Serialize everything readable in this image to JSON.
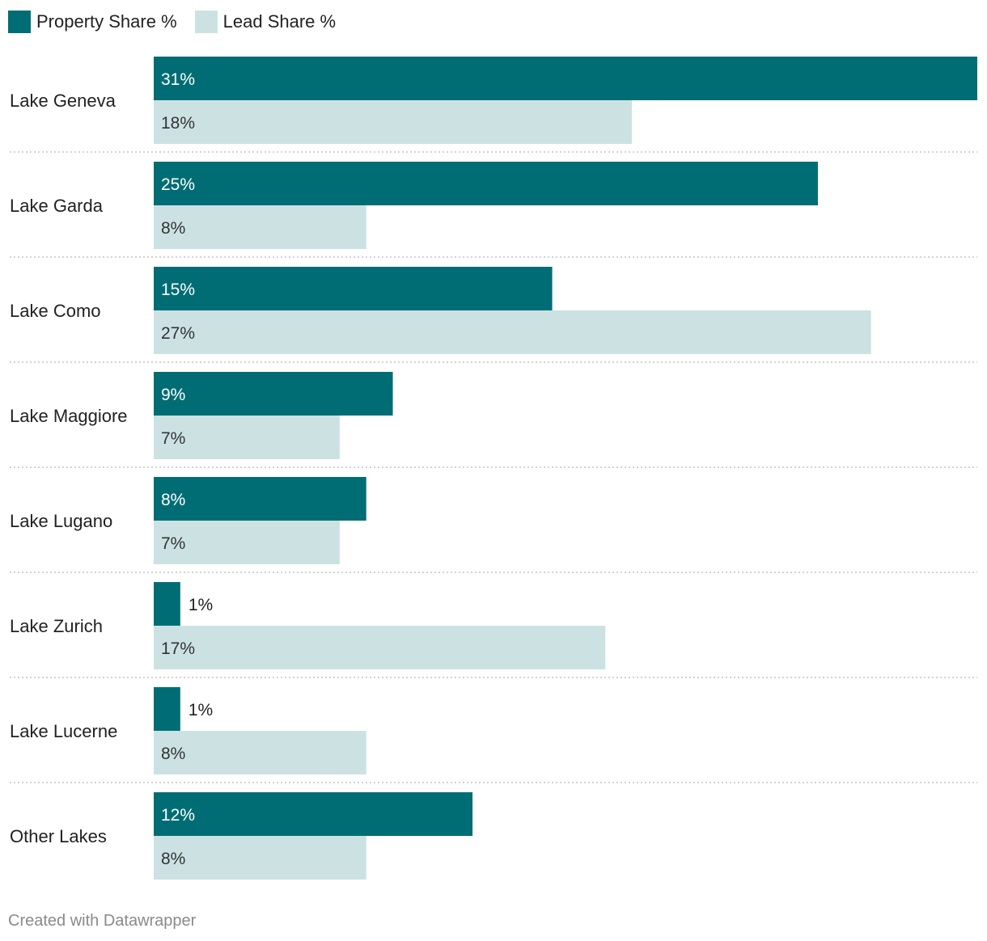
{
  "chart_data": {
    "type": "bar",
    "orientation": "horizontal",
    "categories": [
      "Lake Geneva",
      "Lake Garda",
      "Lake Como",
      "Lake Maggiore",
      "Lake Lugano",
      "Lake Zurich",
      "Lake Lucerne",
      "Other Lakes"
    ],
    "series": [
      {
        "name": "Property Share %",
        "color": "#006d75",
        "values": [
          31,
          25,
          15,
          9,
          8,
          1,
          1,
          12
        ],
        "labels": [
          "31%",
          "25%",
          "15%",
          "9%",
          "8%",
          "1%",
          "1%",
          "12%"
        ]
      },
      {
        "name": "Lead Share %",
        "color": "#cce2e2",
        "values": [
          18,
          8,
          27,
          7,
          7,
          17,
          8,
          8
        ],
        "labels": [
          "18%",
          "8%",
          "27%",
          "7%",
          "7%",
          "17%",
          "8%",
          "8%"
        ]
      }
    ],
    "xlim": [
      0,
      31
    ],
    "grid": false,
    "legend": "top-left"
  },
  "footer": "Created with Datawrapper"
}
